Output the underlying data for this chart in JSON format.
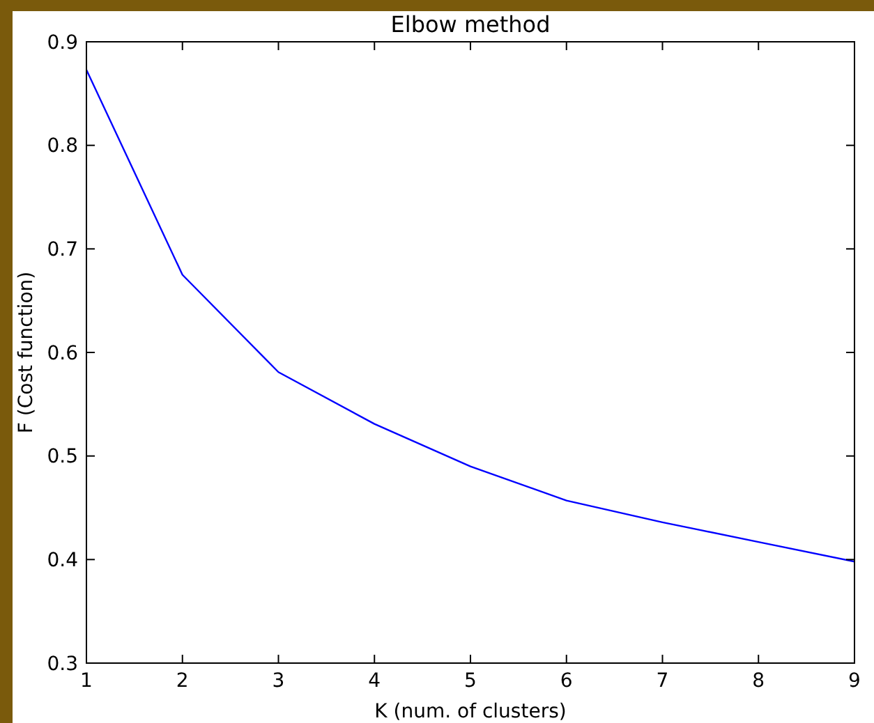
{
  "chart_data": {
    "type": "line",
    "title": "Elbow method",
    "xlabel": "K (num. of clusters)",
    "ylabel": "F (Cost function)",
    "x": [
      1,
      2,
      3,
      4,
      5,
      6,
      7,
      8,
      9
    ],
    "series": [
      {
        "color": "#0000ff",
        "values": [
          0.873,
          0.675,
          0.581,
          0.531,
          0.49,
          0.457,
          0.436,
          0.417,
          0.398
        ]
      }
    ],
    "xlim": [
      1,
      9
    ],
    "xticks": [
      1,
      2,
      3,
      4,
      5,
      6,
      7,
      8,
      9
    ],
    "ylim": [
      0.3,
      0.9
    ],
    "yticks": [
      {
        "value": 0.3,
        "label": "0.3"
      },
      {
        "value": 0.4,
        "label": "0.4"
      },
      {
        "value": 0.5,
        "label": "0.5"
      },
      {
        "value": 0.6,
        "label": "0.6"
      },
      {
        "value": 0.7,
        "label": "0.7"
      },
      {
        "value": 0.8,
        "label": "0.8"
      },
      {
        "value": 0.9,
        "label": "0.9"
      }
    ],
    "grid": false,
    "marker": "none",
    "line_style": "solid"
  }
}
